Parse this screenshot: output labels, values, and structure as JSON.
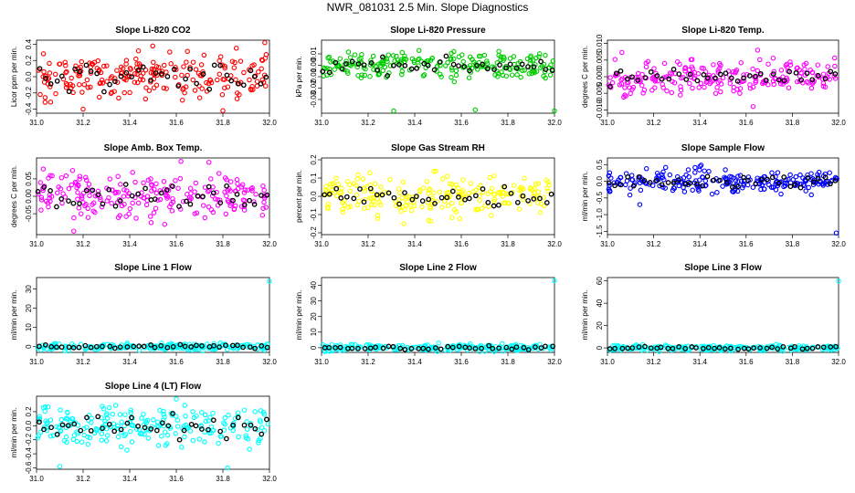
{
  "figure": {
    "title": "NWR_081031  2.5 Min. Slope Diagnostics"
  },
  "colors": {
    "reference_points": "#000000"
  },
  "chart_data": [
    {
      "type": "scatter",
      "title": "Slope Li-820 CO2",
      "xlabel": "",
      "ylabel": "Licor ppm per min.",
      "xlim": [
        31.0,
        32.0
      ],
      "ylim": [
        -0.45,
        0.45
      ],
      "xticks": [
        "31.0",
        "31.2",
        "31.4",
        "31.6",
        "31.8",
        "32.0"
      ],
      "yticks": [
        {
          "v": -0.4,
          "label": "-0.4"
        },
        {
          "v": -0.2,
          "label": "-0.2"
        },
        {
          "v": 0.0,
          "label": "0.0"
        },
        {
          "v": 0.2,
          "label": "0.2"
        },
        {
          "v": 0.4,
          "label": "0.4"
        }
      ],
      "color": "#ff0000",
      "spread": 0.14,
      "outliers": [
        [
          31.2,
          -0.4
        ],
        [
          31.8,
          -0.42
        ],
        [
          31.98,
          0.42
        ]
      ]
    },
    {
      "type": "scatter",
      "title": "Slope Li-820 Pressure",
      "xlabel": "",
      "ylabel": "kPa per min.",
      "xlim": [
        31.0,
        32.0
      ],
      "ylim": [
        -0.042,
        0.022
      ],
      "xticks": [
        "31.0",
        "31.2",
        "31.4",
        "31.6",
        "31.8",
        "32.0"
      ],
      "yticks": [
        {
          "v": -0.03,
          "label": "-0.03"
        },
        {
          "v": -0.02,
          "label": "-0.02"
        },
        {
          "v": -0.01,
          "label": "-0.01"
        },
        {
          "v": 0.0,
          "label": "0.00"
        },
        {
          "v": 0.01,
          "label": "0.01"
        }
      ],
      "color": "#00cc00",
      "spread": 0.006,
      "outliers": [
        [
          31.31,
          -0.04
        ],
        [
          31.66,
          -0.039
        ],
        [
          32.0,
          -0.04
        ]
      ]
    },
    {
      "type": "scatter",
      "title": "Slope Li-820 Temp.",
      "xlabel": "",
      "ylabel": "degrees C per min.",
      "xlim": [
        31.0,
        32.0
      ],
      "ylim": [
        -0.011,
        0.011
      ],
      "xticks": [
        "31.0",
        "31.2",
        "31.4",
        "31.6",
        "31.8",
        "32.0"
      ],
      "yticks": [
        {
          "v": -0.01,
          "label": "-0.010"
        },
        {
          "v": -0.005,
          "label": "-0.005"
        },
        {
          "v": 0.0,
          "label": "0.000"
        },
        {
          "v": 0.005,
          "label": "0.005"
        },
        {
          "v": 0.01,
          "label": "0.010"
        }
      ],
      "color": "#ff00ff",
      "spread": 0.0025,
      "outliers": [
        [
          31.65,
          0.008
        ],
        [
          31.63,
          -0.009
        ]
      ]
    },
    {
      "type": "scatter",
      "title": "Slope Amb. Box Temp.",
      "xlabel": "",
      "ylabel": "degrees C per min.",
      "xlim": [
        31.0,
        32.0
      ],
      "ylim": [
        -0.11,
        0.11
      ],
      "xticks": [
        "31.0",
        "31.2",
        "31.4",
        "31.6",
        "31.8",
        "32.0"
      ],
      "yticks": [
        {
          "v": -0.05,
          "label": "-0.05"
        },
        {
          "v": 0.0,
          "label": "0.00"
        },
        {
          "v": 0.05,
          "label": "0.05"
        }
      ],
      "color": "#ff00ff",
      "spread": 0.032,
      "outliers": [
        [
          31.62,
          0.1
        ],
        [
          31.16,
          -0.1
        ]
      ]
    },
    {
      "type": "scatter",
      "title": "Slope Gas Stream RH",
      "xlabel": "",
      "ylabel": "percent per min.",
      "xlim": [
        31.0,
        32.0
      ],
      "ylim": [
        -0.21,
        0.21
      ],
      "xticks": [
        "31.0",
        "31.2",
        "31.4",
        "31.6",
        "31.8",
        "32.0"
      ],
      "yticks": [
        {
          "v": -0.2,
          "label": "-0.2"
        },
        {
          "v": -0.1,
          "label": "-0.1"
        },
        {
          "v": 0.0,
          "label": "0.0"
        },
        {
          "v": 0.1,
          "label": "0.1"
        },
        {
          "v": 0.2,
          "label": "0.2"
        }
      ],
      "color": "#ffff00",
      "spread": 0.06,
      "outliers": []
    },
    {
      "type": "scatter",
      "title": "Slope Sample Flow",
      "xlabel": "",
      "ylabel": "ml/min per min.",
      "xlim": [
        31.0,
        32.0
      ],
      "ylim": [
        -1.6,
        0.7
      ],
      "xticks": [
        "31.0",
        "31.2",
        "31.4",
        "31.6",
        "31.8",
        "32.0"
      ],
      "yticks": [
        {
          "v": -1.5,
          "label": "-1.5"
        },
        {
          "v": -1.0,
          "label": "-1.0"
        },
        {
          "v": -0.5,
          "label": "-0.5"
        },
        {
          "v": 0.0,
          "label": "0.0"
        },
        {
          "v": 0.5,
          "label": "0.5"
        }
      ],
      "color": "#0000ff",
      "spread": 0.17,
      "outliers": [
        [
          31.14,
          -0.7
        ],
        [
          31.99,
          -1.55
        ]
      ]
    },
    {
      "type": "scatter",
      "title": "Slope Line 1 Flow",
      "xlabel": "",
      "ylabel": "ml/min per min.",
      "xlim": [
        31.0,
        32.0
      ],
      "ylim": [
        -3,
        36
      ],
      "xticks": [
        "31.0",
        "31.2",
        "31.4",
        "31.6",
        "31.8",
        "32.0"
      ],
      "yticks": [
        {
          "v": 0,
          "label": "0"
        },
        {
          "v": 10,
          "label": "10"
        },
        {
          "v": 20,
          "label": "20"
        },
        {
          "v": 30,
          "label": "30"
        }
      ],
      "color": "#00ffff",
      "spread": 0.9,
      "outliers": [
        [
          32.0,
          34
        ]
      ]
    },
    {
      "type": "scatter",
      "title": "Slope Line 2 Flow",
      "xlabel": "",
      "ylabel": "ml/min per min.",
      "xlim": [
        31.0,
        32.0
      ],
      "ylim": [
        -3,
        45
      ],
      "xticks": [
        "31.0",
        "31.2",
        "31.4",
        "31.6",
        "31.8",
        "32.0"
      ],
      "yticks": [
        {
          "v": 0,
          "label": "0"
        },
        {
          "v": 10,
          "label": "10"
        },
        {
          "v": 20,
          "label": "20"
        },
        {
          "v": 30,
          "label": "30"
        },
        {
          "v": 40,
          "label": "40"
        }
      ],
      "color": "#00ffff",
      "spread": 1.1,
      "outliers": [
        [
          32.0,
          43
        ]
      ]
    },
    {
      "type": "scatter",
      "title": "Slope Line 3 Flow",
      "xlabel": "",
      "ylabel": "ml/min per min.",
      "xlim": [
        31.0,
        32.0
      ],
      "ylim": [
        -4,
        63
      ],
      "xticks": [
        "31.0",
        "31.2",
        "31.4",
        "31.6",
        "31.8",
        "32.0"
      ],
      "yticks": [
        {
          "v": 0,
          "label": "0"
        },
        {
          "v": 20,
          "label": "20"
        },
        {
          "v": 40,
          "label": "40"
        },
        {
          "v": 60,
          "label": "60"
        }
      ],
      "color": "#00ffff",
      "spread": 1.3,
      "outliers": [
        [
          32.0,
          60
        ]
      ]
    },
    {
      "type": "scatter",
      "title": "Slope Line 4 (LT) Flow",
      "xlabel": "",
      "ylabel": "ml/min per min.",
      "xlim": [
        31.0,
        32.0
      ],
      "ylim": [
        -0.62,
        0.42
      ],
      "xticks": [
        "31.0",
        "31.2",
        "31.4",
        "31.6",
        "31.8",
        "32.0"
      ],
      "yticks": [
        {
          "v": -0.6,
          "label": "-0.6"
        },
        {
          "v": -0.4,
          "label": "-0.4"
        },
        {
          "v": -0.2,
          "label": "-0.2"
        },
        {
          "v": 0.0,
          "label": "0.0"
        },
        {
          "v": 0.2,
          "label": "0.2"
        }
      ],
      "color": "#00ffff",
      "spread": 0.14,
      "outliers": [
        [
          31.6,
          0.38
        ],
        [
          31.1,
          -0.58
        ],
        [
          31.82,
          -0.6
        ]
      ]
    }
  ]
}
